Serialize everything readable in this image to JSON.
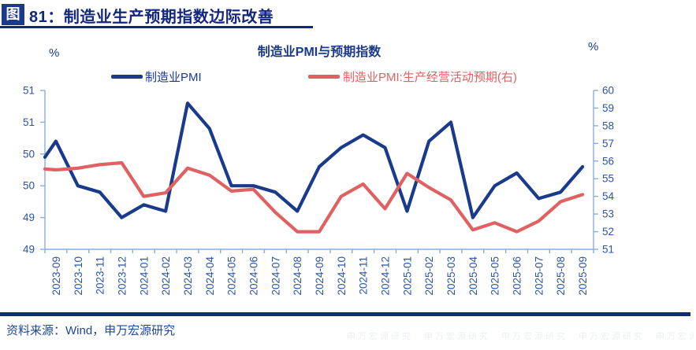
{
  "figure": {
    "badge_label": "图",
    "title": "81：制造业生产预期指数边际改善",
    "source": "资料来源：Wind，申万宏源研究",
    "watermark_text": "申万宏源研究"
  },
  "colors": {
    "navy_accent": "#14277E",
    "axis_line": "#85AEDE",
    "axis_text": "#2B55A8",
    "series_pmi": "#1A3A8C",
    "series_expectation": "#E06161"
  },
  "chart_data": {
    "type": "line",
    "title": "制造业PMI与预期指数",
    "grid": false,
    "legend_position": "top",
    "left_axis": {
      "unit": "%",
      "min": 48.5,
      "max": 51,
      "step": 0.5,
      "tick_labels": [
        "51",
        "51",
        "50",
        "50",
        "49",
        "49"
      ]
    },
    "right_axis": {
      "unit": "%",
      "min": 51,
      "max": 60,
      "step": 1,
      "tick_labels": [
        "60",
        "59",
        "58",
        "57",
        "56",
        "55",
        "54",
        "53",
        "52",
        "51"
      ]
    },
    "categories": [
      "2023-09",
      "2023-10",
      "2023-11",
      "2023-12",
      "2024-01",
      "2024-02",
      "2024-03",
      "2024-04",
      "2024-05",
      "2024-06",
      "2024-07",
      "2024-08",
      "2024-09",
      "2024-10",
      "2024-11",
      "2024-12",
      "2025-01",
      "2025-02",
      "2025-03",
      "2025-04",
      "2025-05",
      "2025-06",
      "2025-07",
      "2025-08",
      "2025-09"
    ],
    "series": [
      {
        "name": "制造业PMI",
        "axis": "left",
        "color": "#1A3A8C",
        "edge_lead_in_value": 49.95,
        "values": [
          50.2,
          49.5,
          49.4,
          49.0,
          49.2,
          49.1,
          50.8,
          50.4,
          49.5,
          49.5,
          49.4,
          49.1,
          49.8,
          50.1,
          50.3,
          50.1,
          49.1,
          50.2,
          50.5,
          49.0,
          49.5,
          49.7,
          49.3,
          49.4,
          49.8
        ]
      },
      {
        "name": "制造业PMI:生产经营活动预期(右)",
        "axis": "right",
        "color": "#E06161",
        "edge_lead_in_value": 55.55,
        "values": [
          55.5,
          55.6,
          55.8,
          55.9,
          54.0,
          54.2,
          55.6,
          55.2,
          54.3,
          54.4,
          53.1,
          52.0,
          52.0,
          54.0,
          54.7,
          53.3,
          55.3,
          54.5,
          53.8,
          52.1,
          52.5,
          52.0,
          52.6,
          53.7,
          54.1
        ]
      }
    ]
  }
}
